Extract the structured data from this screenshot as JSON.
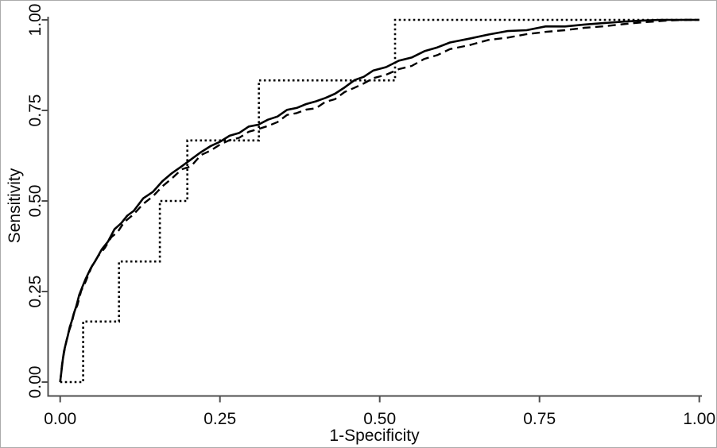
{
  "figure": {
    "background": "#ffffff",
    "border_color": "#ababab",
    "axis_color": "#4f4f4f",
    "curve_color": "#000000",
    "text_color": "#0a0a0a"
  },
  "chart_data": {
    "type": "line",
    "title": "",
    "xlabel": "1-Specificity",
    "ylabel": "Sensitivity",
    "xlim": [
      0,
      1
    ],
    "ylim": [
      0,
      1
    ],
    "grid": false,
    "legend": "none",
    "x_ticks": [
      "0.00",
      "0.25",
      "0.50",
      "0.75",
      "1.00"
    ],
    "x_tick_values": [
      0,
      0.25,
      0.5,
      0.75,
      1
    ],
    "y_ticks": [
      "0.00",
      "0.25",
      "0.50",
      "0.75",
      "1.00"
    ],
    "y_tick_values": [
      0,
      0.25,
      0.5,
      0.75,
      1
    ],
    "series": [
      {
        "name": "smooth-roc-solid",
        "style": "solid",
        "points": [
          [
            0,
            0
          ],
          [
            0.002,
            0.03
          ],
          [
            0.004,
            0.06
          ],
          [
            0.006,
            0.085
          ],
          [
            0.009,
            0.105
          ],
          [
            0.012,
            0.13
          ],
          [
            0.015,
            0.15
          ],
          [
            0.018,
            0.17
          ],
          [
            0.021,
            0.185
          ],
          [
            0.025,
            0.21
          ],
          [
            0.03,
            0.24
          ],
          [
            0.035,
            0.265
          ],
          [
            0.04,
            0.285
          ],
          [
            0.048,
            0.315
          ],
          [
            0.055,
            0.335
          ],
          [
            0.065,
            0.365
          ],
          [
            0.075,
            0.39
          ],
          [
            0.085,
            0.42
          ],
          [
            0.095,
            0.44
          ],
          [
            0.105,
            0.457
          ],
          [
            0.115,
            0.475
          ],
          [
            0.13,
            0.505
          ],
          [
            0.145,
            0.527
          ],
          [
            0.16,
            0.553
          ],
          [
            0.175,
            0.578
          ],
          [
            0.19,
            0.595
          ],
          [
            0.205,
            0.615
          ],
          [
            0.22,
            0.635
          ],
          [
            0.235,
            0.65
          ],
          [
            0.25,
            0.665
          ],
          [
            0.265,
            0.678
          ],
          [
            0.28,
            0.69
          ],
          [
            0.295,
            0.703
          ],
          [
            0.31,
            0.713
          ],
          [
            0.325,
            0.722
          ],
          [
            0.34,
            0.735
          ],
          [
            0.355,
            0.75
          ],
          [
            0.37,
            0.758
          ],
          [
            0.385,
            0.767
          ],
          [
            0.4,
            0.775
          ],
          [
            0.415,
            0.785
          ],
          [
            0.43,
            0.795
          ],
          [
            0.445,
            0.815
          ],
          [
            0.461,
            0.832
          ],
          [
            0.475,
            0.845
          ],
          [
            0.49,
            0.858
          ],
          [
            0.51,
            0.872
          ],
          [
            0.53,
            0.885
          ],
          [
            0.55,
            0.898
          ],
          [
            0.57,
            0.912
          ],
          [
            0.59,
            0.925
          ],
          [
            0.61,
            0.937
          ],
          [
            0.64,
            0.948
          ],
          [
            0.67,
            0.96
          ],
          [
            0.7,
            0.968
          ],
          [
            0.73,
            0.973
          ],
          [
            0.76,
            0.98
          ],
          [
            0.79,
            0.984
          ],
          [
            0.82,
            0.987
          ],
          [
            0.85,
            0.991
          ],
          [
            0.88,
            0.995
          ],
          [
            0.91,
            0.998
          ],
          [
            0.94,
            1
          ],
          [
            1,
            1
          ]
        ]
      },
      {
        "name": "smooth-roc-dashed",
        "style": "dashed",
        "points": [
          [
            0,
            0
          ],
          [
            0.003,
            0.05
          ],
          [
            0.006,
            0.08
          ],
          [
            0.01,
            0.115
          ],
          [
            0.014,
            0.14
          ],
          [
            0.018,
            0.165
          ],
          [
            0.022,
            0.19
          ],
          [
            0.027,
            0.215
          ],
          [
            0.033,
            0.25
          ],
          [
            0.04,
            0.28
          ],
          [
            0.05,
            0.32
          ],
          [
            0.06,
            0.35
          ],
          [
            0.07,
            0.37
          ],
          [
            0.08,
            0.4
          ],
          [
            0.09,
            0.415
          ],
          [
            0.1,
            0.44
          ],
          [
            0.115,
            0.465
          ],
          [
            0.13,
            0.49
          ],
          [
            0.145,
            0.515
          ],
          [
            0.16,
            0.538
          ],
          [
            0.175,
            0.565
          ],
          [
            0.19,
            0.585
          ],
          [
            0.205,
            0.598
          ],
          [
            0.22,
            0.625
          ],
          [
            0.235,
            0.64
          ],
          [
            0.25,
            0.655
          ],
          [
            0.265,
            0.668
          ],
          [
            0.28,
            0.675
          ],
          [
            0.295,
            0.69
          ],
          [
            0.31,
            0.7
          ],
          [
            0.325,
            0.705
          ],
          [
            0.34,
            0.72
          ],
          [
            0.355,
            0.735
          ],
          [
            0.37,
            0.745
          ],
          [
            0.385,
            0.75
          ],
          [
            0.4,
            0.758
          ],
          [
            0.415,
            0.772
          ],
          [
            0.43,
            0.782
          ],
          [
            0.445,
            0.8
          ],
          [
            0.46,
            0.812
          ],
          [
            0.475,
            0.825
          ],
          [
            0.49,
            0.838
          ],
          [
            0.51,
            0.85
          ],
          [
            0.53,
            0.862
          ],
          [
            0.55,
            0.875
          ],
          [
            0.57,
            0.89
          ],
          [
            0.59,
            0.905
          ],
          [
            0.61,
            0.917
          ],
          [
            0.64,
            0.932
          ],
          [
            0.67,
            0.943
          ],
          [
            0.7,
            0.952
          ],
          [
            0.73,
            0.96
          ],
          [
            0.76,
            0.967
          ],
          [
            0.79,
            0.972
          ],
          [
            0.82,
            0.977
          ],
          [
            0.85,
            0.982
          ],
          [
            0.88,
            0.988
          ],
          [
            0.91,
            0.993
          ],
          [
            0.95,
            0.998
          ],
          [
            0.98,
            1
          ],
          [
            1,
            1
          ]
        ]
      },
      {
        "name": "empirical-roc-dotted-step",
        "style": "dotted-step",
        "points": [
          [
            0,
            0
          ],
          [
            0.036,
            0
          ],
          [
            0.036,
            0.167
          ],
          [
            0.092,
            0.167
          ],
          [
            0.092,
            0.333
          ],
          [
            0.156,
            0.333
          ],
          [
            0.156,
            0.5
          ],
          [
            0.199,
            0.5
          ],
          [
            0.199,
            0.667
          ],
          [
            0.311,
            0.667
          ],
          [
            0.311,
            0.833
          ],
          [
            0.524,
            0.833
          ],
          [
            0.524,
            1
          ],
          [
            1,
            1
          ]
        ]
      }
    ]
  }
}
